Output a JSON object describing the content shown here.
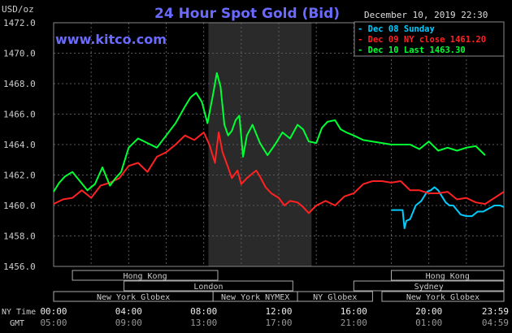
{
  "header": {
    "title": "24 Hour Spot Gold (Bid)",
    "website": "www.kitco.com",
    "unit_label": "USD/oz",
    "datetime": "December 10, 2019 22:30"
  },
  "legend": [
    {
      "text": "Dec 08 Sunday",
      "color": "#00ccff"
    },
    {
      "text": "Dec 09 NY close 1461.20",
      "color": "#ff2222"
    },
    {
      "text": "Dec 10 Last 1463.30",
      "color": "#00ff33"
    }
  ],
  "sessions": [
    {
      "label": "Hong Kong",
      "row": 0,
      "start": 1.0,
      "end": 8.75
    },
    {
      "label": "Hong Kong",
      "row": 0,
      "start": 18.0,
      "end": 24.0
    },
    {
      "label": "London",
      "row": 1,
      "start": 3.75,
      "end": 12.75
    },
    {
      "label": "Sydney",
      "row": 1,
      "start": 16.0,
      "end": 24.0
    },
    {
      "label": "New York Globex",
      "row": 2,
      "start": 0.0,
      "end": 8.5
    },
    {
      "label": "New York NYMEX",
      "row": 2,
      "start": 8.5,
      "end": 13.0
    },
    {
      "label": "NY Globex",
      "row": 2,
      "start": 13.0,
      "end": 17.0
    },
    {
      "label": "New York Globex",
      "row": 2,
      "start": 17.5,
      "end": 24.0
    }
  ],
  "time_rows": {
    "row1_label": "NY Time",
    "row2_label": "GMT",
    "ny_ticks": [
      "00:00",
      "04:00",
      "08:00",
      "12:00",
      "16:00",
      "20:00",
      "23:59"
    ],
    "gmt_ticks": [
      "05:00",
      "09:00",
      "13:00",
      "17:00",
      "21:00",
      "01:00",
      "04:59"
    ]
  },
  "colors": {
    "background": "#000000",
    "grid": "#5a5a5a",
    "text": "#cccccc",
    "title": "#6a6aff",
    "highlight": "#2a2a2a"
  },
  "chart_data": {
    "type": "line",
    "title": "24 Hour Spot Gold (Bid)",
    "ylabel": "USD/oz",
    "xlabel": "",
    "ylim": [
      1456.0,
      1472.0
    ],
    "xlim": [
      0,
      24
    ],
    "y_ticks": [
      "1456.0",
      "1458.0",
      "1460.0",
      "1462.0",
      "1464.0",
      "1466.0",
      "1468.0",
      "1470.0",
      "1472.0"
    ],
    "grid": true,
    "legend_position": "top-right",
    "shaded_x_range": [
      8.25,
      13.75
    ],
    "series": [
      {
        "name": "Dec 08 Sunday",
        "color": "#00ccff",
        "x": [
          18.0,
          18.6,
          18.7,
          18.8,
          19.0,
          19.3,
          19.6,
          19.9,
          20.1,
          20.3,
          20.5,
          20.7,
          20.9,
          21.1,
          21.3,
          21.5,
          21.7,
          22.0,
          22.3,
          22.6,
          22.9,
          23.2,
          23.5,
          23.8,
          24.0
        ],
        "y": [
          1459.7,
          1459.7,
          1458.5,
          1459.0,
          1459.1,
          1460.0,
          1460.3,
          1460.9,
          1461.0,
          1461.2,
          1461.0,
          1460.6,
          1460.2,
          1460.0,
          1460.0,
          1459.7,
          1459.4,
          1459.3,
          1459.3,
          1459.6,
          1459.6,
          1459.8,
          1460.0,
          1460.0,
          1459.9
        ]
      },
      {
        "name": "Dec 09 NY close 1461.20",
        "color": "#ff2222",
        "x": [
          0.0,
          0.5,
          1.0,
          1.5,
          2.0,
          2.5,
          3.0,
          3.5,
          4.0,
          4.5,
          5.0,
          5.5,
          6.0,
          6.5,
          7.0,
          7.5,
          8.0,
          8.3,
          8.6,
          8.8,
          9.0,
          9.3,
          9.5,
          9.8,
          10.0,
          10.3,
          10.5,
          10.8,
          11.0,
          11.3,
          11.6,
          12.0,
          12.3,
          12.6,
          13.0,
          13.3,
          13.6,
          14.0,
          14.5,
          15.0,
          15.5,
          16.0,
          16.5,
          17.0,
          17.5,
          18.0,
          18.5,
          19.0,
          19.5,
          20.0,
          20.5,
          21.0,
          21.5,
          22.0,
          22.5,
          23.0,
          23.5,
          24.0
        ],
        "y": [
          1460.1,
          1460.4,
          1460.5,
          1461.0,
          1460.5,
          1461.3,
          1461.5,
          1461.8,
          1462.6,
          1462.8,
          1462.2,
          1463.2,
          1463.5,
          1464.0,
          1464.6,
          1464.3,
          1464.8,
          1464.0,
          1462.8,
          1464.8,
          1463.5,
          1462.5,
          1461.8,
          1462.3,
          1461.4,
          1461.8,
          1462.0,
          1462.3,
          1461.9,
          1461.2,
          1460.8,
          1460.5,
          1460.0,
          1460.3,
          1460.2,
          1459.9,
          1459.5,
          1460.0,
          1460.3,
          1460.0,
          1460.6,
          1460.8,
          1461.4,
          1461.6,
          1461.6,
          1461.5,
          1461.6,
          1461.0,
          1461.0,
          1460.8,
          1460.8,
          1460.9,
          1460.4,
          1460.5,
          1460.2,
          1460.1,
          1460.5,
          1460.9
        ]
      },
      {
        "name": "Dec 10 Last 1463.30",
        "color": "#00ff33",
        "x": [
          0.0,
          0.3,
          0.6,
          1.0,
          1.4,
          1.8,
          2.2,
          2.6,
          3.0,
          3.3,
          3.6,
          4.0,
          4.5,
          5.0,
          5.5,
          6.0,
          6.5,
          7.0,
          7.3,
          7.6,
          7.9,
          8.2,
          8.5,
          8.7,
          8.9,
          9.1,
          9.3,
          9.5,
          9.7,
          9.9,
          10.1,
          10.3,
          10.6,
          11.0,
          11.4,
          11.8,
          12.2,
          12.6,
          13.0,
          13.3,
          13.6,
          14.0,
          14.3,
          14.6,
          15.0,
          15.3,
          15.6,
          16.0,
          16.5,
          17.0,
          17.5,
          18.0,
          18.5,
          19.0,
          19.5,
          20.0,
          20.5,
          21.0,
          21.5,
          22.0,
          22.5,
          23.0
        ],
        "y": [
          1460.9,
          1461.5,
          1461.9,
          1462.2,
          1461.6,
          1461.0,
          1461.4,
          1462.5,
          1461.3,
          1461.8,
          1462.2,
          1463.8,
          1464.4,
          1464.1,
          1463.8,
          1464.6,
          1465.4,
          1466.5,
          1467.1,
          1467.4,
          1466.8,
          1465.4,
          1467.3,
          1468.7,
          1467.8,
          1465.3,
          1464.6,
          1464.9,
          1465.6,
          1465.9,
          1463.2,
          1464.6,
          1465.3,
          1464.1,
          1463.3,
          1464.0,
          1464.8,
          1464.4,
          1465.3,
          1465.0,
          1464.2,
          1464.1,
          1465.1,
          1465.5,
          1465.6,
          1465.0,
          1464.8,
          1464.6,
          1464.3,
          1464.2,
          1464.1,
          1464.0,
          1464.0,
          1464.0,
          1463.7,
          1464.2,
          1463.6,
          1463.8,
          1463.6,
          1463.8,
          1463.9,
          1463.3
        ]
      }
    ]
  }
}
